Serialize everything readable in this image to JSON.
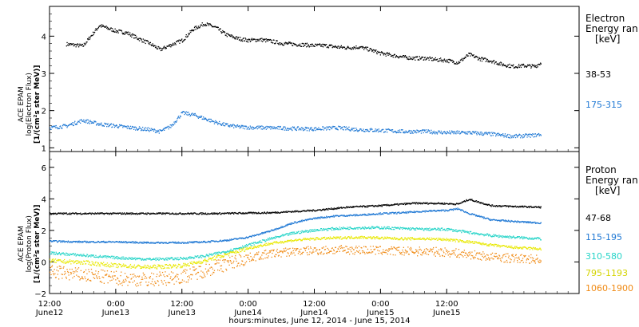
{
  "chart_data": [
    {
      "type": "scatter",
      "panel": "electron",
      "ylabel_lines": [
        "ACE EPAM",
        "log(Electron Flux)",
        "[1/(cm²s ster MeV)]"
      ],
      "ylim": [
        0.9,
        4.8
      ],
      "yticks": [
        1,
        2,
        3,
        4
      ],
      "legend_title": [
        "Electron",
        "Energy ran"
      ],
      "legend_unit": "[keV]",
      "series": [
        {
          "name": "38-53",
          "color": "#000000",
          "x": [
            3,
            6,
            9,
            12,
            14,
            16,
            18,
            20,
            22,
            24,
            26,
            28,
            30,
            32,
            34,
            36,
            38,
            40,
            42,
            44,
            46,
            48,
            50,
            52,
            54,
            56,
            58,
            60,
            62,
            64,
            66,
            68,
            70,
            72,
            74,
            76,
            78,
            80,
            82,
            84,
            86,
            88,
            89
          ],
          "y": [
            3.8,
            3.75,
            4.3,
            4.15,
            4.1,
            3.95,
            3.82,
            3.65,
            3.78,
            3.9,
            4.2,
            4.35,
            4.25,
            4.05,
            3.95,
            3.9,
            3.92,
            3.88,
            3.82,
            3.8,
            3.78,
            3.76,
            3.76,
            3.72,
            3.7,
            3.72,
            3.65,
            3.55,
            3.5,
            3.45,
            3.42,
            3.42,
            3.38,
            3.36,
            3.3,
            3.52,
            3.4,
            3.35,
            3.25,
            3.2,
            3.22,
            3.2,
            3.3
          ]
        },
        {
          "name": "175-315",
          "color": "#1f78d4",
          "x": [
            0,
            3,
            6,
            9,
            12,
            15,
            18,
            20,
            22,
            24,
            26,
            28,
            30,
            32,
            34,
            36,
            40,
            44,
            48,
            52,
            56,
            60,
            64,
            68,
            72,
            76,
            80,
            84,
            88,
            89
          ],
          "y": [
            1.55,
            1.6,
            1.75,
            1.65,
            1.6,
            1.55,
            1.5,
            1.45,
            1.6,
            1.95,
            1.9,
            1.8,
            1.7,
            1.62,
            1.58,
            1.56,
            1.55,
            1.53,
            1.52,
            1.55,
            1.5,
            1.48,
            1.45,
            1.45,
            1.42,
            1.42,
            1.38,
            1.32,
            1.35,
            1.38
          ]
        }
      ]
    },
    {
      "type": "scatter",
      "panel": "proton",
      "ylabel_lines": [
        "ACE EPAM",
        "log(Proton Flux)",
        "[1/(cm²s ster MeV)]"
      ],
      "ylim": [
        -2,
        7
      ],
      "yticks": [
        -2,
        0,
        2,
        4,
        6
      ],
      "legend_title": [
        "Proton",
        "Energy ran"
      ],
      "legend_unit": "[keV]",
      "series": [
        {
          "name": "47-68",
          "color": "#000000",
          "x": [
            0,
            10,
            20,
            30,
            40,
            48,
            54,
            60,
            66,
            70,
            74,
            76,
            80,
            84,
            89
          ],
          "y": [
            3.1,
            3.1,
            3.1,
            3.1,
            3.15,
            3.3,
            3.5,
            3.6,
            3.75,
            3.75,
            3.7,
            4.0,
            3.6,
            3.55,
            3.5
          ]
        },
        {
          "name": "115-195",
          "color": "#1f78d4",
          "x": [
            0,
            6,
            12,
            18,
            24,
            28,
            32,
            36,
            40,
            44,
            48,
            52,
            56,
            60,
            64,
            68,
            72,
            74,
            76,
            78,
            80,
            84,
            89
          ],
          "y": [
            1.35,
            1.3,
            1.3,
            1.25,
            1.25,
            1.3,
            1.4,
            1.6,
            2.0,
            2.5,
            2.8,
            2.95,
            3.0,
            3.1,
            3.15,
            3.25,
            3.3,
            3.4,
            3.1,
            2.9,
            2.7,
            2.6,
            2.5
          ]
        },
        {
          "name": "310-580",
          "color": "#26d4c8",
          "x": [
            0,
            6,
            12,
            18,
            24,
            28,
            32,
            36,
            40,
            44,
            48,
            52,
            56,
            60,
            64,
            68,
            72,
            76,
            80,
            84,
            89
          ],
          "y": [
            0.6,
            0.45,
            0.3,
            0.2,
            0.25,
            0.4,
            0.7,
            1.1,
            1.5,
            1.85,
            2.05,
            2.15,
            2.2,
            2.2,
            2.15,
            2.1,
            2.1,
            1.9,
            1.7,
            1.6,
            1.5
          ]
        },
        {
          "name": "795-1193",
          "color": "#e8e800",
          "x": [
            0,
            6,
            12,
            18,
            24,
            28,
            32,
            36,
            40,
            44,
            48,
            52,
            56,
            60,
            64,
            68,
            72,
            76,
            80,
            84,
            89
          ],
          "y": [
            0.1,
            0.0,
            -0.2,
            -0.3,
            -0.2,
            0.1,
            0.5,
            0.9,
            1.2,
            1.4,
            1.5,
            1.55,
            1.6,
            1.55,
            1.5,
            1.5,
            1.45,
            1.3,
            1.1,
            0.95,
            0.85
          ]
        },
        {
          "name": "1060-1900",
          "color": "#f08a14",
          "x": [
            0,
            6,
            12,
            18,
            24,
            28,
            32,
            36,
            40,
            44,
            48,
            52,
            56,
            60,
            64,
            68,
            72,
            76,
            80,
            84,
            89
          ],
          "y": [
            -0.6,
            -0.8,
            -1.0,
            -1.1,
            -0.9,
            -0.5,
            -0.1,
            0.3,
            0.55,
            0.7,
            0.75,
            0.8,
            0.8,
            0.75,
            0.7,
            0.7,
            0.65,
            0.5,
            0.35,
            0.25,
            0.2
          ]
        }
      ]
    }
  ],
  "x_axis": {
    "range_hours": [
      0,
      96
    ],
    "ticks": [
      {
        "hour": 0,
        "time": "12:00",
        "day": "June12"
      },
      {
        "hour": 12,
        "time": "0:00",
        "day": "June13"
      },
      {
        "hour": 24,
        "time": "12:00",
        "day": "June13"
      },
      {
        "hour": 36,
        "time": "0:00",
        "day": "June14"
      },
      {
        "hour": 48,
        "time": "12:00",
        "day": "June14"
      },
      {
        "hour": 60,
        "time": "0:00",
        "day": "June15"
      },
      {
        "hour": 72,
        "time": "12:00",
        "day": "June15"
      }
    ],
    "title": "hours:minutes, June 12, 2014 - June 15, 2014"
  }
}
